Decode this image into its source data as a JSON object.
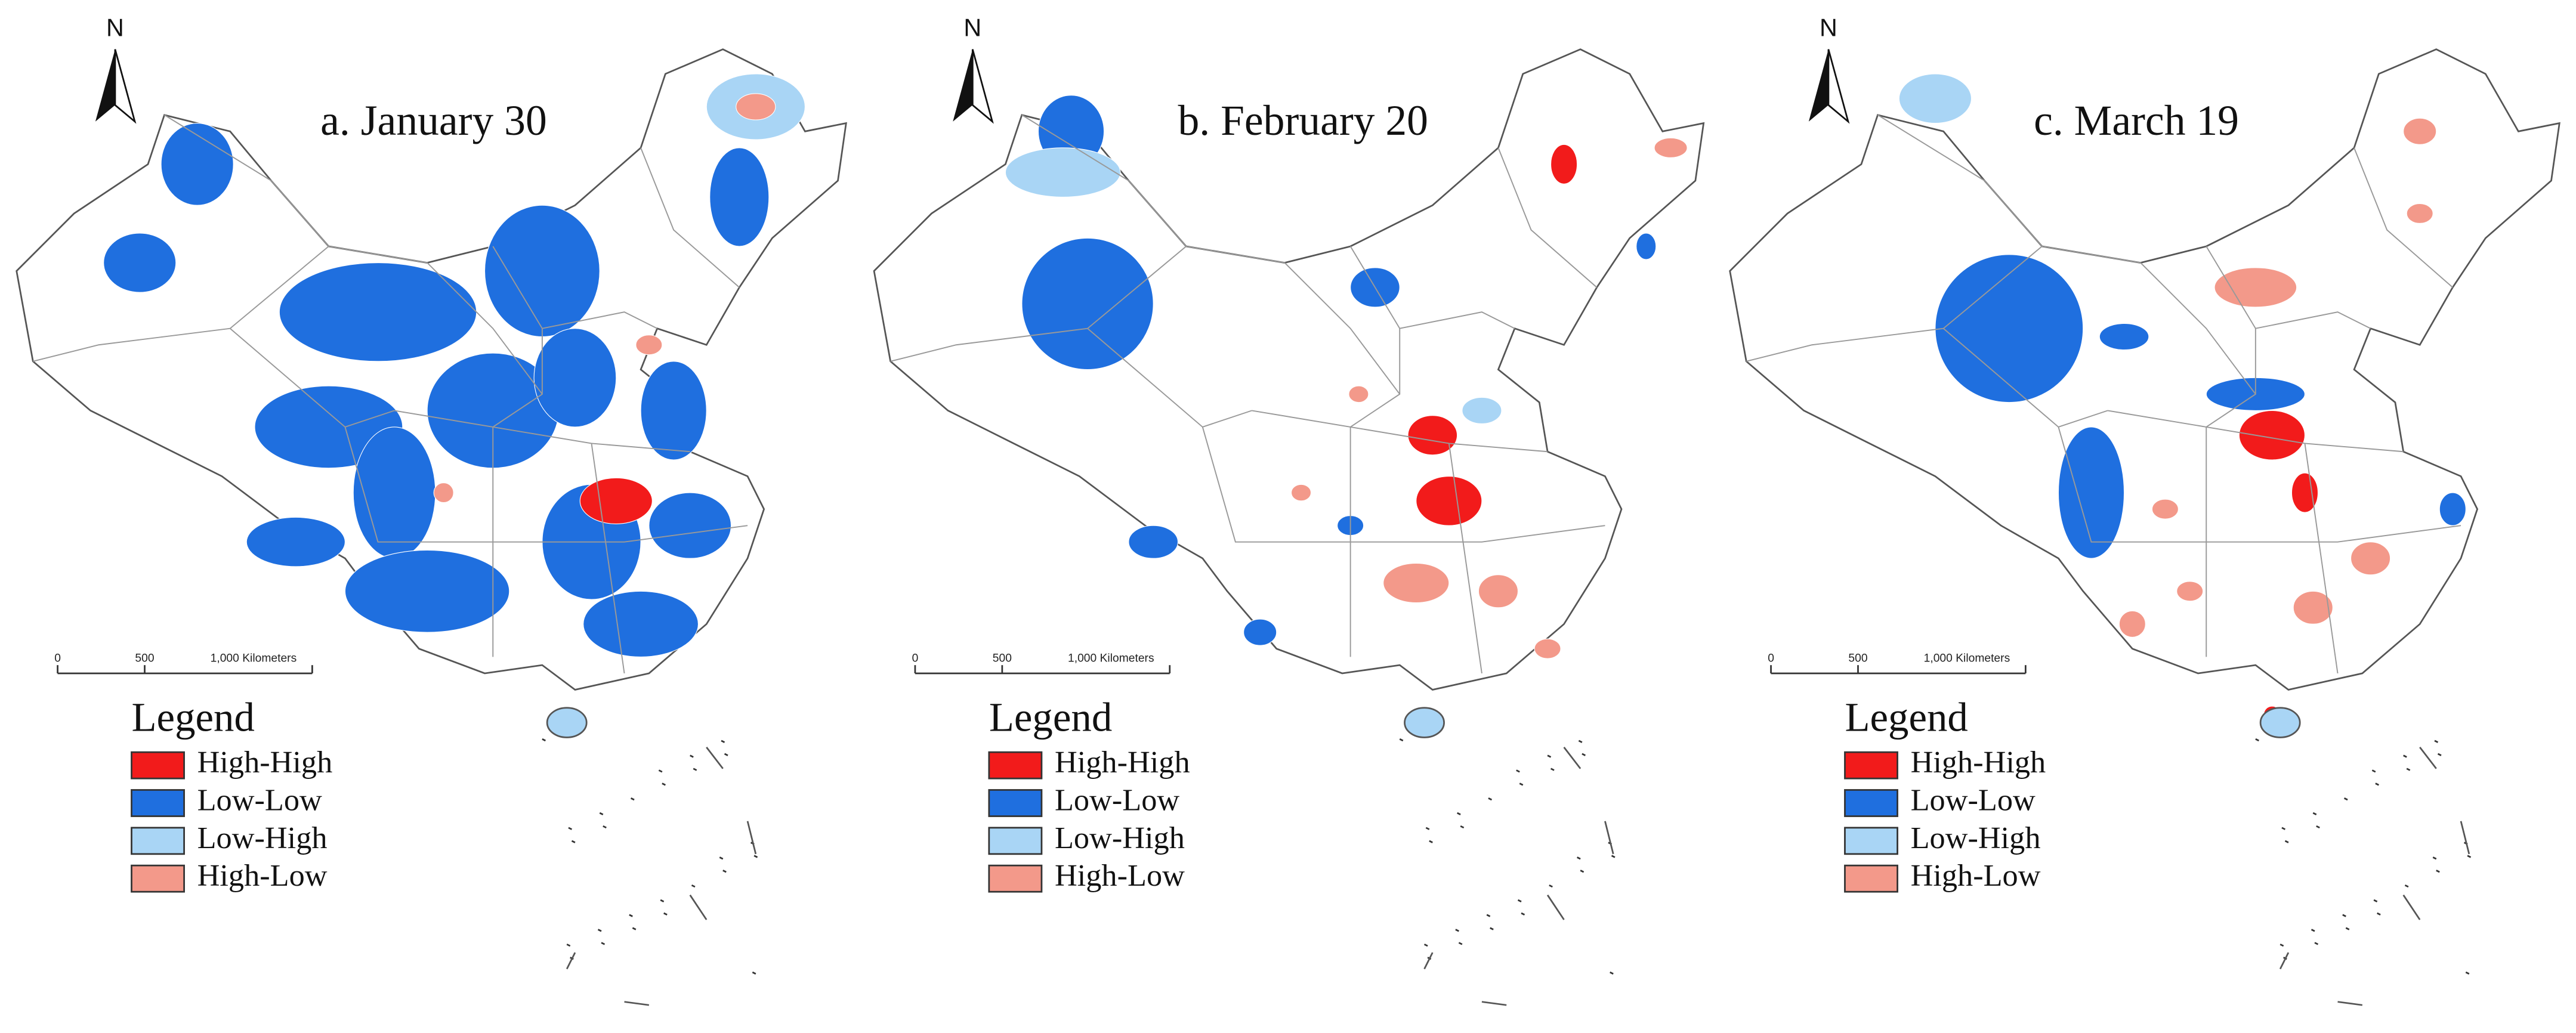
{
  "panels": [
    {
      "title": "a. January 30",
      "north": "N",
      "scale": {
        "labels": [
          "0",
          "500",
          "1,000 Kilometers"
        ]
      },
      "legend": {
        "title": "Legend",
        "items": [
          {
            "label": "High-High",
            "color": "#f21b1b"
          },
          {
            "label": "Low-Low",
            "color": "#1f6fdf"
          },
          {
            "label": "Low-High",
            "color": "#a9d5f5"
          },
          {
            "label": "High-Low",
            "color": "#f3998a"
          }
        ]
      }
    },
    {
      "title": "b. February 20",
      "north": "N",
      "scale": {
        "labels": [
          "0",
          "500",
          "1,000 Kilometers"
        ]
      },
      "legend": {
        "title": "Legend",
        "items": [
          {
            "label": "High-High",
            "color": "#f21b1b"
          },
          {
            "label": "Low-Low",
            "color": "#1f6fdf"
          },
          {
            "label": "Low-High",
            "color": "#a9d5f5"
          },
          {
            "label": "High-Low",
            "color": "#f3998a"
          }
        ]
      }
    },
    {
      "title": "c. March 19",
      "north": "N",
      "scale": {
        "labels": [
          "0",
          "500",
          "1,000 Kilometers"
        ]
      },
      "legend": {
        "title": "Legend",
        "items": [
          {
            "label": "High-High",
            "color": "#f21b1b"
          },
          {
            "label": "Low-Low",
            "color": "#1f6fdf"
          },
          {
            "label": "Low-High",
            "color": "#a9d5f5"
          },
          {
            "label": "High-Low",
            "color": "#f3998a"
          }
        ]
      }
    }
  ]
}
